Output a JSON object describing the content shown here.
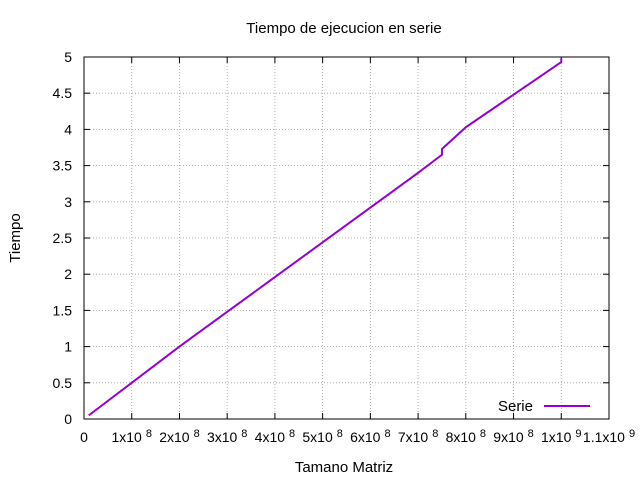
{
  "chart_data": {
    "type": "line",
    "title": "Tiempo de ejecucion en serie",
    "xlabel": "Tamano Matriz",
    "ylabel": "Tiempo",
    "xlim": [
      0,
      1100000000
    ],
    "ylim": [
      0,
      5
    ],
    "grid": true,
    "legend_position": "bottom-right",
    "x_ticks": [
      {
        "value": 0,
        "base": "0",
        "exp": ""
      },
      {
        "value": 100000000,
        "base": "1x10",
        "exp": "8"
      },
      {
        "value": 200000000,
        "base": "2x10",
        "exp": "8"
      },
      {
        "value": 300000000,
        "base": "3x10",
        "exp": "8"
      },
      {
        "value": 400000000,
        "base": "4x10",
        "exp": "8"
      },
      {
        "value": 500000000,
        "base": "5x10",
        "exp": "8"
      },
      {
        "value": 600000000,
        "base": "6x10",
        "exp": "8"
      },
      {
        "value": 700000000,
        "base": "7x10",
        "exp": "8"
      },
      {
        "value": 800000000,
        "base": "8x10",
        "exp": "8"
      },
      {
        "value": 900000000,
        "base": "9x10",
        "exp": "8"
      },
      {
        "value": 1000000000,
        "base": "1x10",
        "exp": "9"
      },
      {
        "value": 1100000000,
        "base": "1.1x10",
        "exp": "9"
      }
    ],
    "y_ticks": [
      {
        "value": 0,
        "label": "0"
      },
      {
        "value": 0.5,
        "label": "0.5"
      },
      {
        "value": 1,
        "label": "1"
      },
      {
        "value": 1.5,
        "label": "1.5"
      },
      {
        "value": 2,
        "label": "2"
      },
      {
        "value": 2.5,
        "label": "2.5"
      },
      {
        "value": 3,
        "label": "3"
      },
      {
        "value": 3.5,
        "label": "3.5"
      },
      {
        "value": 4,
        "label": "4"
      },
      {
        "value": 4.5,
        "label": "4.5"
      },
      {
        "value": 5,
        "label": "5"
      }
    ],
    "series": [
      {
        "name": "Serie",
        "color": "#9400d3",
        "x": [
          10000000,
          100000000,
          200000000,
          300000000,
          400000000,
          500000000,
          600000000,
          700000000,
          750000000,
          750000000,
          800000000,
          900000000,
          1000000000,
          1000000000
        ],
        "y": [
          0.05,
          0.5,
          1.0,
          1.48,
          1.96,
          2.44,
          2.92,
          3.4,
          3.65,
          3.73,
          4.03,
          4.48,
          4.93,
          4.98
        ]
      }
    ]
  }
}
